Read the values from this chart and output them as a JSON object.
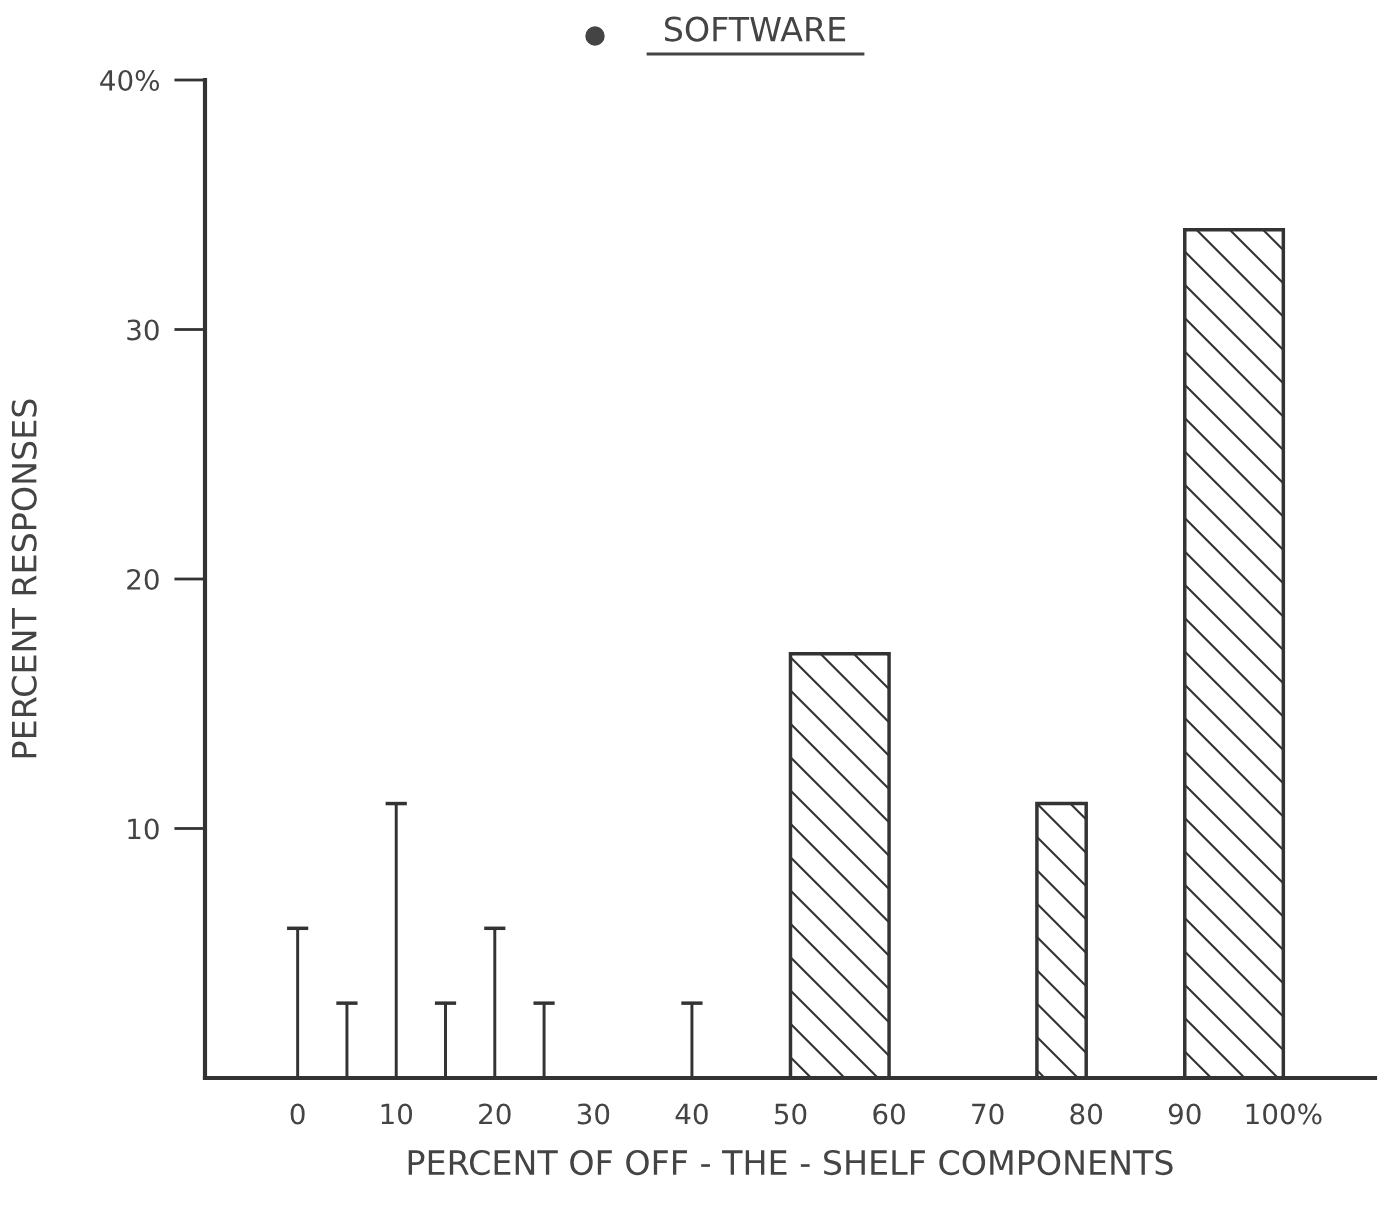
{
  "chart_data": {
    "type": "bar",
    "title": "SOFTWARE",
    "xlabel": "PERCENT OF OFF - THE - SHELF COMPONENTS",
    "ylabel": "PERCENT RESPONSES",
    "xlim": [
      -9.4,
      109.3
    ],
    "xticks": [
      0,
      10,
      20,
      30,
      40,
      50,
      60,
      70,
      80,
      90,
      {
        "value": 100,
        "label": "100%"
      }
    ],
    "ylim": [
      0,
      40
    ],
    "yticks": [
      10,
      20,
      30,
      {
        "value": 40,
        "label": "40%"
      }
    ],
    "x": [
      0,
      5,
      10,
      15,
      20,
      25,
      40
    ],
    "series": [
      {
        "values": [
          6,
          3,
          11,
          3,
          6,
          3,
          3
        ],
        "color": "#333333"
      },
      {
        "type": "histogram",
        "bins": [
          50,
          60,
          75,
          80,
          90,
          100
        ],
        "values": [
          17,
          null,
          11,
          null,
          34
        ],
        "color": "#333333"
      }
    ]
  }
}
